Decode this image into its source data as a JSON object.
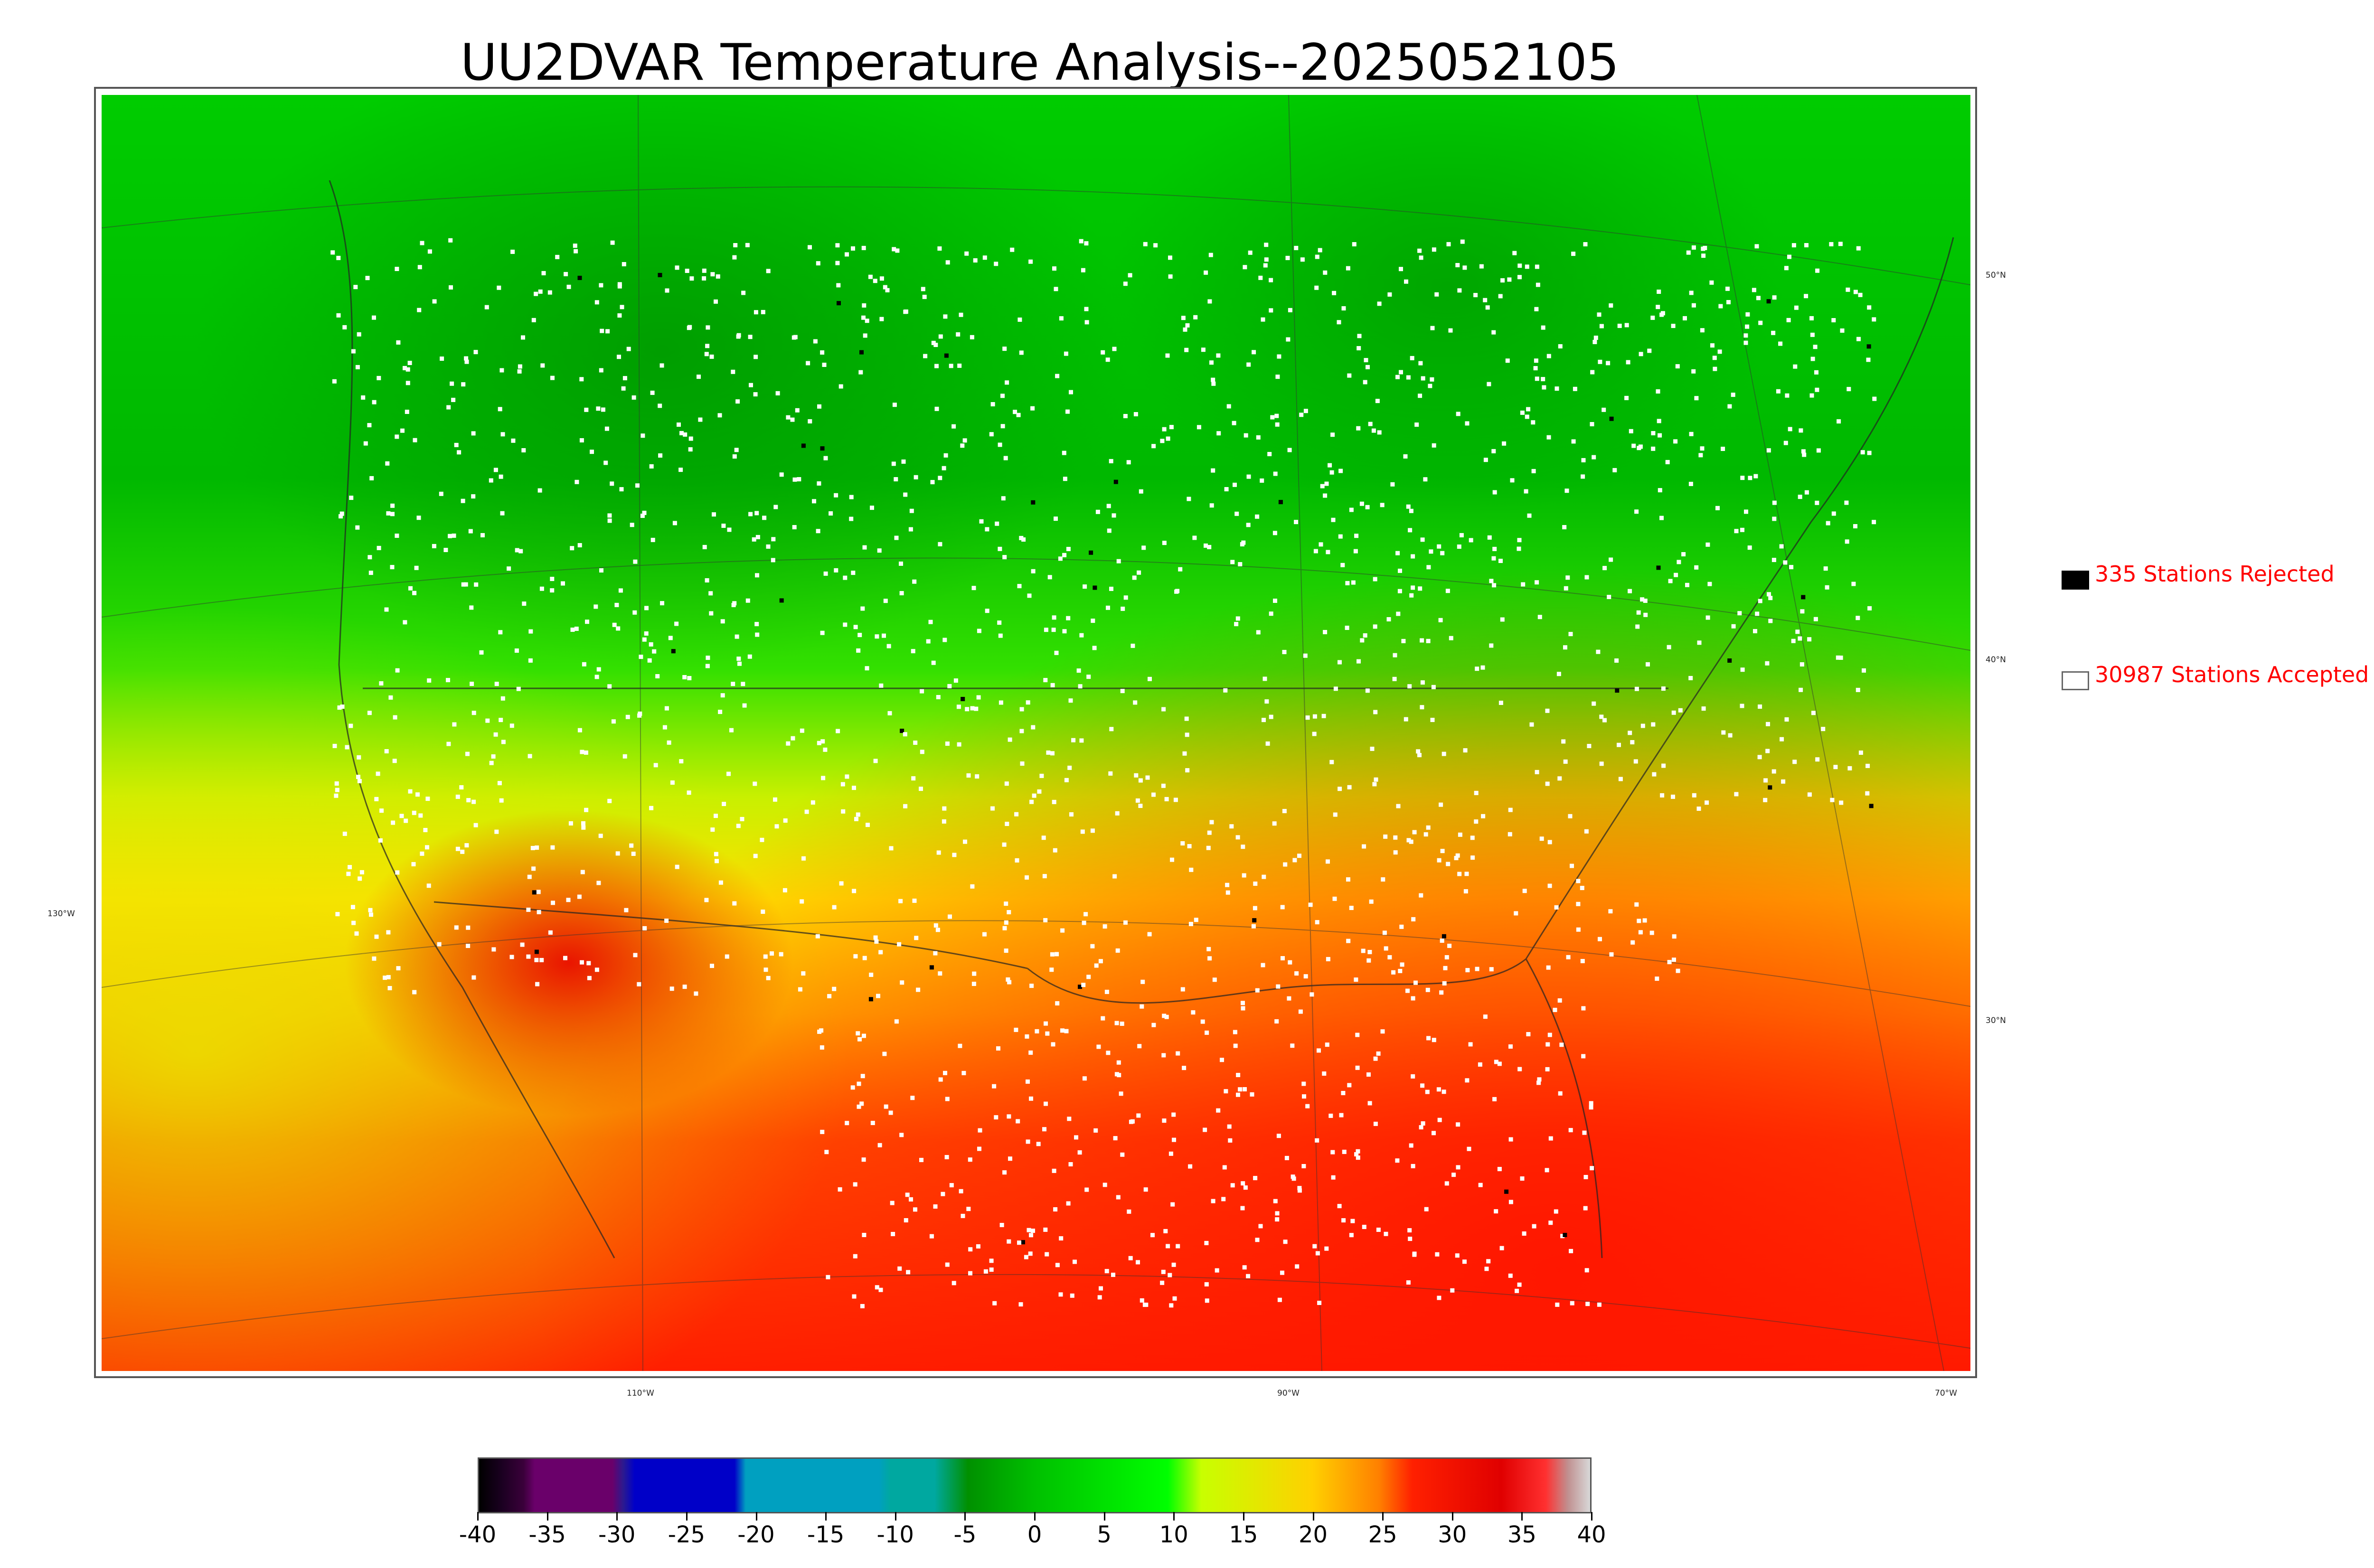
{
  "title": "UU2DVAR Temperature Analysis--2025052105",
  "map": {
    "latitude_labels": [
      "50°N",
      "40°N",
      "30°N"
    ],
    "longitude_labels": [
      "130°W",
      "110°W",
      "90°W",
      "70°W"
    ]
  },
  "legend": {
    "rejected": {
      "label": "335 Stations Rejected",
      "swatch": "#000000"
    },
    "accepted": {
      "label": "30987 Stations Accepted",
      "swatch": "#ffffff"
    }
  },
  "colorbar": {
    "min": -40,
    "max": 40,
    "ticks": [
      "-40",
      "-35",
      "-30",
      "-25",
      "-20",
      "-15",
      "-10",
      "-5",
      "0",
      "5",
      "10",
      "15",
      "20",
      "25",
      "30",
      "35",
      "40"
    ]
  },
  "colors": {
    "cold": "#00a000",
    "mild": "#00ee00",
    "warm": "#ffd400",
    "hot": "#ff1a00",
    "label_red": "#ff0000"
  }
}
